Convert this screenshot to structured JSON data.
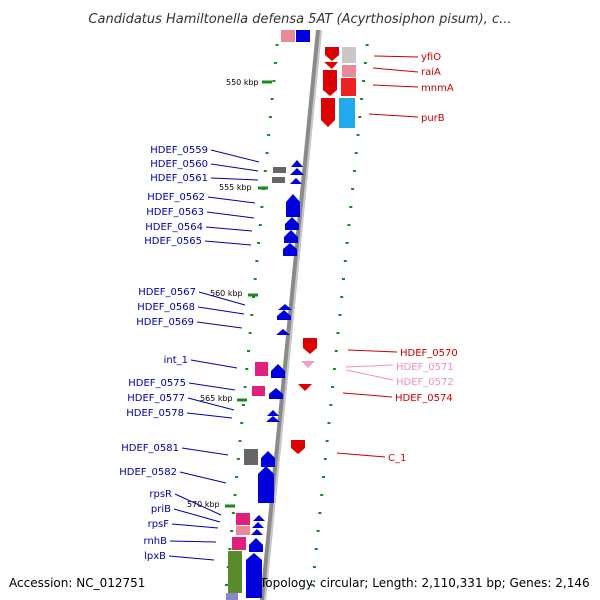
{
  "title": "Candidatus Hamiltonella defensa 5AT (Acyrthosiphon pisum), c...",
  "footer": {
    "accession": "Accession: NC_012751",
    "summary": "Topology: circular; Length: 2,110,331 bp; Genes: 2,146"
  },
  "colors": {
    "backbone": "#8a8a8a",
    "left_labels": "#0000aa",
    "right_labels": "#cc0000",
    "right_labels_light": "#f090c0",
    "tick": "#1a8a1a"
  },
  "scale_ticks": [
    "550 kbp",
    "555 kbp",
    "560 kbp",
    "565 kbp",
    "570 kbp"
  ],
  "left_genes": [
    {
      "name": "HDEF_0559",
      "color": "#0000aa"
    },
    {
      "name": "HDEF_0560",
      "color": "#0000aa"
    },
    {
      "name": "HDEF_0561",
      "color": "#0000aa"
    },
    {
      "name": "HDEF_0562",
      "color": "#0000aa"
    },
    {
      "name": "HDEF_0563",
      "color": "#0000aa"
    },
    {
      "name": "HDEF_0564",
      "color": "#0000aa"
    },
    {
      "name": "HDEF_0565",
      "color": "#0000aa"
    },
    {
      "name": "HDEF_0567",
      "color": "#0000aa"
    },
    {
      "name": "HDEF_0568",
      "color": "#0000aa"
    },
    {
      "name": "HDEF_0569",
      "color": "#0000aa"
    },
    {
      "name": "int_1",
      "color": "#0000aa"
    },
    {
      "name": "HDEF_0575",
      "color": "#0000aa"
    },
    {
      "name": "HDEF_0577",
      "color": "#0000aa"
    },
    {
      "name": "HDEF_0578",
      "color": "#0000aa"
    },
    {
      "name": "HDEF_0581",
      "color": "#0000aa"
    },
    {
      "name": "HDEF_0582",
      "color": "#0000aa"
    },
    {
      "name": "rpsR",
      "color": "#0000aa"
    },
    {
      "name": "priB",
      "color": "#0000aa"
    },
    {
      "name": "rpsF",
      "color": "#0000aa"
    },
    {
      "name": "rnhB",
      "color": "#0000aa"
    },
    {
      "name": "lpxB",
      "color": "#0000aa"
    }
  ],
  "right_genes": [
    {
      "name": "yfiO",
      "color": "#cc0000"
    },
    {
      "name": "raiA",
      "color": "#cc0000"
    },
    {
      "name": "mnmA",
      "color": "#cc0000"
    },
    {
      "name": "purB",
      "color": "#cc0000"
    },
    {
      "name": "HDEF_0570",
      "color": "#cc0000"
    },
    {
      "name": "HDEF_0571",
      "color": "#f090c0"
    },
    {
      "name": "HDEF_0572",
      "color": "#f090c0"
    },
    {
      "name": "HDEF_0574",
      "color": "#cc0000"
    },
    {
      "name": "C_1",
      "color": "#cc0000"
    }
  ]
}
